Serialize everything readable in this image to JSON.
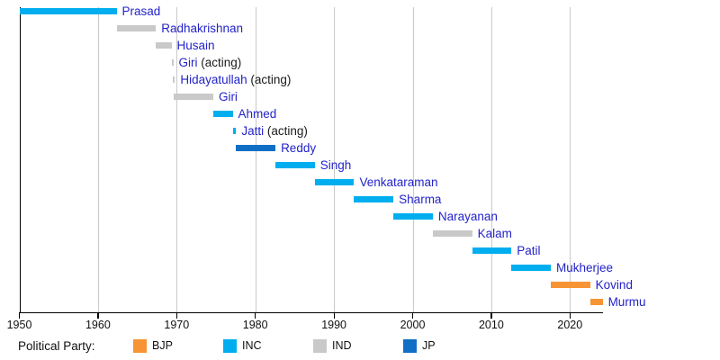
{
  "chart_data": {
    "type": "bar",
    "subtype": "timeline-gantt",
    "title": "",
    "xlabel": "",
    "ylabel": "",
    "grid": "vertical-decade-gridlines",
    "x_axis": {
      "ticks": [
        1950,
        1960,
        1970,
        1980,
        1990,
        2000,
        2010,
        2020
      ],
      "range": [
        1950,
        2024.2
      ]
    },
    "rows": [
      {
        "name": "Prasad",
        "suffix": "",
        "party": "INC",
        "start": 1950.07,
        "end": 1962.36
      },
      {
        "name": "Radhakrishnan",
        "suffix": "",
        "party": "IND",
        "start": 1962.36,
        "end": 1967.36
      },
      {
        "name": "Husain",
        "suffix": "",
        "party": "IND",
        "start": 1967.36,
        "end": 1969.34
      },
      {
        "name": "Giri",
        "suffix": " (acting)",
        "party": "IND",
        "start": 1969.34,
        "end": 1969.55
      },
      {
        "name": "Hidayatullah",
        "suffix": " (acting)",
        "party": "IND",
        "start": 1969.55,
        "end": 1969.65
      },
      {
        "name": "Giri",
        "suffix": "",
        "party": "IND",
        "start": 1969.65,
        "end": 1974.65
      },
      {
        "name": "Ahmed",
        "suffix": "",
        "party": "INC",
        "start": 1974.65,
        "end": 1977.12
      },
      {
        "name": "Jatti",
        "suffix": " (acting)",
        "party": "INC",
        "start": 1977.12,
        "end": 1977.56
      },
      {
        "name": "Reddy",
        "suffix": "",
        "party": "JP",
        "start": 1977.56,
        "end": 1982.56
      },
      {
        "name": "Singh",
        "suffix": "",
        "party": "INC",
        "start": 1982.56,
        "end": 1987.56
      },
      {
        "name": "Venkataraman",
        "suffix": "",
        "party": "INC",
        "start": 1987.56,
        "end": 1992.56
      },
      {
        "name": "Sharma",
        "suffix": "",
        "party": "INC",
        "start": 1992.56,
        "end": 1997.56
      },
      {
        "name": "Narayanan",
        "suffix": "",
        "party": "INC",
        "start": 1997.56,
        "end": 2002.56
      },
      {
        "name": "Kalam",
        "suffix": "",
        "party": "IND",
        "start": 2002.56,
        "end": 2007.56
      },
      {
        "name": "Patil",
        "suffix": "",
        "party": "INC",
        "start": 2007.56,
        "end": 2012.56
      },
      {
        "name": "Mukherjee",
        "suffix": "",
        "party": "INC",
        "start": 2012.56,
        "end": 2017.56
      },
      {
        "name": "Kovind",
        "suffix": "",
        "party": "BJP",
        "start": 2017.56,
        "end": 2022.56
      },
      {
        "name": "Murmu",
        "suffix": "",
        "party": "BJP",
        "start": 2022.56,
        "end": 2024.15
      }
    ],
    "party_colors": {
      "BJP": "#f79433",
      "INC": "#00aeef",
      "IND": "#c9c9c9",
      "JP": "#106fc4"
    },
    "legend": {
      "title": "Political Party:",
      "entries": [
        {
          "label": "BJP",
          "party": "BJP"
        },
        {
          "label": "INC",
          "party": "INC"
        },
        {
          "label": "IND",
          "party": "IND"
        },
        {
          "label": "JP",
          "party": "JP"
        }
      ]
    }
  }
}
